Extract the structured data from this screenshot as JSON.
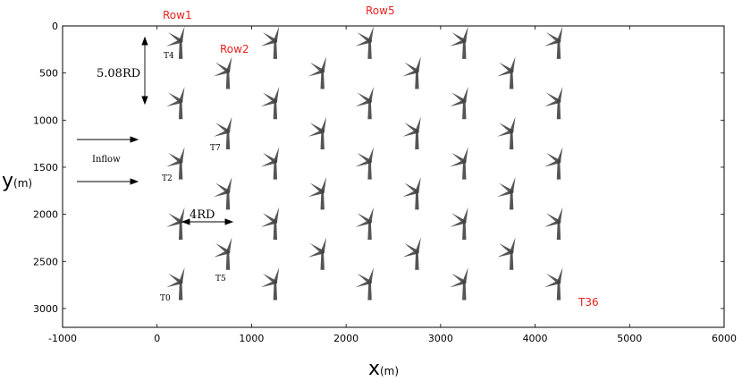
{
  "axes": {
    "x_label": "x",
    "x_unit": "(m)",
    "y_label": "y",
    "y_unit": "(m)",
    "x_range": [
      -1000,
      6000
    ],
    "y_range": [
      0,
      3200
    ],
    "y_inverted": true,
    "x_ticks": [
      "-1000",
      "0",
      "1000",
      "2000",
      "3000",
      "4000",
      "5000",
      "6000"
    ],
    "x_tick_values": [
      -1000,
      0,
      1000,
      2000,
      3000,
      4000,
      5000,
      6000
    ],
    "y_ticks": [
      "0",
      "500",
      "1000",
      "1500",
      "2000",
      "2500",
      "3000"
    ],
    "y_tick_values": [
      0,
      500,
      1000,
      1500,
      2000,
      2500,
      3000
    ]
  },
  "turbines": {
    "columns_x": [
      250,
      750,
      1250,
      1750,
      2250,
      2750,
      3250,
      3750,
      4250
    ],
    "odd_rows_y": [
      160,
      800,
      1440,
      2080,
      2720
    ],
    "even_rows_y": [
      480,
      1120,
      1760,
      2400
    ],
    "blade_color": "#555555"
  },
  "labels": {
    "row1": "Row1",
    "row2": "Row2",
    "row5": "Row5",
    "t36": "T36",
    "t4": "T4",
    "t7": "T7",
    "t2": "T2",
    "t5": "T5",
    "t0": "T0",
    "inflow": "Inflow",
    "spacing_y": "5.08RD",
    "spacing_x": "4RD",
    "red_color": "#e8231f"
  }
}
